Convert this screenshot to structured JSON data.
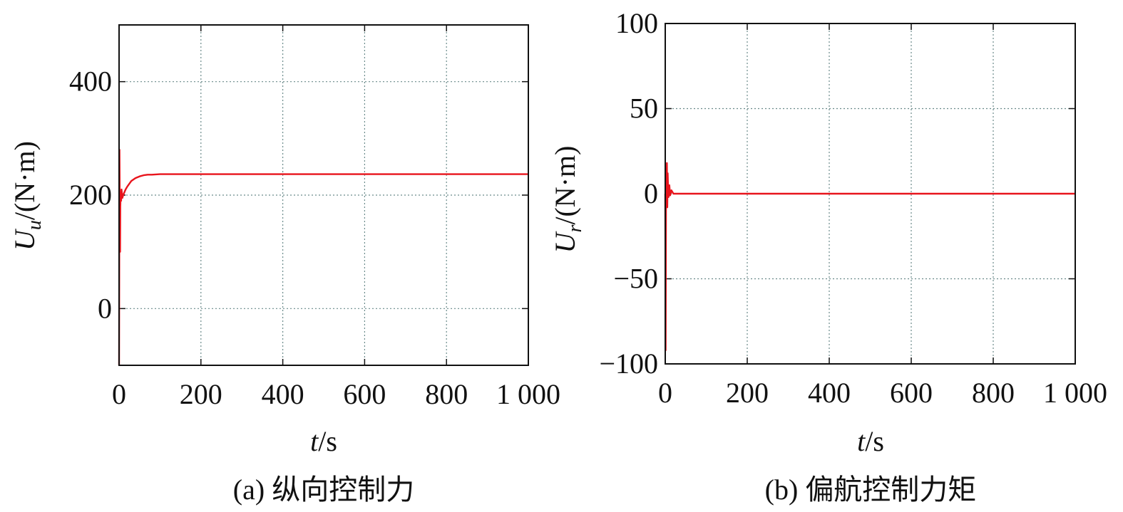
{
  "chart_data": [
    {
      "type": "line",
      "caption": "(a) 纵向控制力",
      "xlabel": {
        "var": "t",
        "unit": "/s"
      },
      "ylabel": {
        "var": "U",
        "sub": "u",
        "unit": "/(N·m)"
      },
      "xlim": [
        0,
        1000
      ],
      "ylim": [
        -100,
        500
      ],
      "xticks": [
        0,
        200,
        400,
        600,
        800,
        1000
      ],
      "xtick_labels": [
        "0",
        "200",
        "400",
        "600",
        "800",
        "1 000"
      ],
      "yticks": [
        0,
        200,
        400
      ],
      "ytick_labels": [
        "0",
        "200",
        "400"
      ],
      "grid": true,
      "color": "#e8141c",
      "series": [
        {
          "x": [
            0,
            1,
            2,
            2.5,
            3,
            4,
            5,
            6,
            8,
            10,
            13,
            16,
            20,
            25,
            30,
            40,
            50,
            60,
            70,
            80,
            100,
            150,
            200,
            300,
            400,
            500,
            600,
            700,
            800,
            900,
            1000
          ],
          "y": [
            -100,
            280,
            150,
            100,
            180,
            200,
            190,
            210,
            195,
            200,
            205,
            210,
            215,
            220,
            225,
            230,
            233,
            235,
            236,
            236,
            237,
            237,
            237,
            237,
            237,
            237,
            237,
            237,
            237,
            237,
            237
          ]
        }
      ]
    },
    {
      "type": "line",
      "caption": "(b) 偏航控制力矩",
      "xlabel": {
        "var": "t",
        "unit": "/s"
      },
      "ylabel": {
        "var": "U",
        "sub": "r",
        "unit": "/(N·m)"
      },
      "xlim": [
        0,
        1000
      ],
      "ylim": [
        -100,
        100
      ],
      "xticks": [
        0,
        200,
        400,
        600,
        800,
        1000
      ],
      "xtick_labels": [
        "0",
        "200",
        "400",
        "600",
        "800",
        "1 000"
      ],
      "yticks": [
        -100,
        -50,
        0,
        50,
        100
      ],
      "ytick_labels": [
        "−100",
        "−50",
        "0",
        "50",
        "100"
      ],
      "grid": true,
      "color": "#e8141c",
      "series": [
        {
          "x": [
            0,
            1,
            2,
            3,
            4,
            5,
            6,
            7,
            8,
            10,
            12,
            15,
            20,
            30,
            50,
            100,
            200,
            400,
            600,
            780,
            800,
            1000
          ],
          "y": [
            0,
            -92,
            10,
            -5,
            18,
            -8,
            12,
            3,
            -2,
            5,
            -1,
            2,
            0,
            0,
            0,
            0,
            0,
            0,
            0,
            0,
            0,
            0
          ]
        }
      ]
    }
  ]
}
